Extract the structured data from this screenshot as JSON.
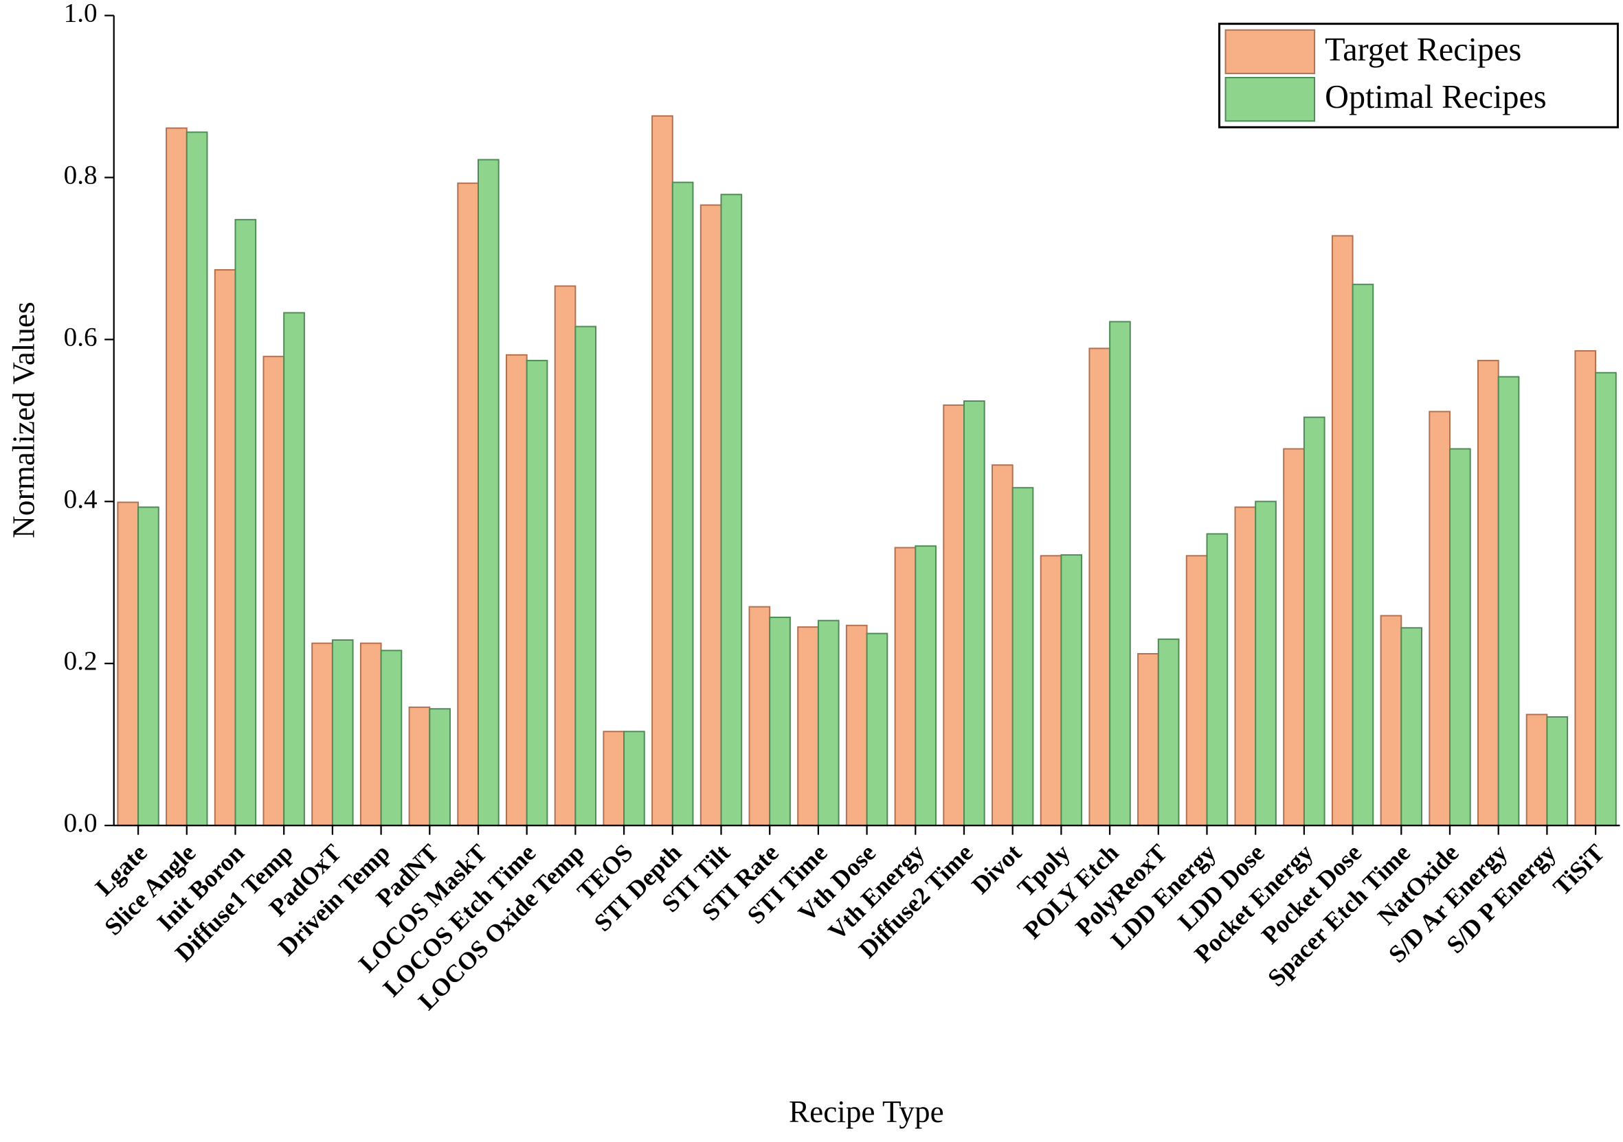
{
  "chart_data": {
    "type": "bar",
    "x_label": "Recipe Type",
    "y_label": "Normalized Values",
    "categories": [
      "Lgate",
      "Slice Angle",
      "Init Boron",
      "Diffuse1 Temp",
      "PadOxT",
      "Drivein Temp",
      "PadNT",
      "LOCOS MaskT",
      "LOCOS Etch Time",
      "LOCOS Oxide Temp",
      "TEOS",
      "STI Depth",
      "STI Tilt",
      "STI Rate",
      "STI Time",
      "Vth Dose",
      "Vth Energy",
      "Diffuse2 Time",
      "Divot",
      "Tpoly",
      "POLY Etch",
      "PolyReoxT",
      "LDD Energy",
      "LDD Dose",
      "Pocket Energy",
      "Pocket Dose",
      "Spacer Etch Time",
      "NatOxide",
      "S/D Ar Energy",
      "S/D P Energy",
      "TiSiT"
    ],
    "series": [
      {
        "name": "Target Recipes",
        "color": "#f7b086",
        "values": [
          0.399,
          0.861,
          0.686,
          0.579,
          0.225,
          0.225,
          0.146,
          0.793,
          0.581,
          0.666,
          0.116,
          0.876,
          0.766,
          0.27,
          0.245,
          0.247,
          0.343,
          0.519,
          0.445,
          0.333,
          0.589,
          0.212,
          0.333,
          0.393,
          0.465,
          0.728,
          0.259,
          0.511,
          0.574,
          0.137,
          0.586
        ]
      },
      {
        "name": "Optimal Recipes",
        "color": "#8ed48c",
        "values": [
          0.393,
          0.856,
          0.748,
          0.633,
          0.229,
          0.216,
          0.144,
          0.822,
          0.574,
          0.616,
          0.116,
          0.794,
          0.779,
          0.257,
          0.253,
          0.237,
          0.345,
          0.524,
          0.417,
          0.334,
          0.622,
          0.23,
          0.36,
          0.4,
          0.504,
          0.668,
          0.244,
          0.465,
          0.554,
          0.134,
          0.559
        ]
      }
    ],
    "ylim": [
      0,
      1
    ],
    "yticks": [
      {
        "value": 0,
        "label": "0.0"
      },
      0.2,
      0.4,
      0.6,
      0.8,
      {
        "value": 1,
        "label": "1.0"
      }
    ],
    "legend": "upper right"
  }
}
